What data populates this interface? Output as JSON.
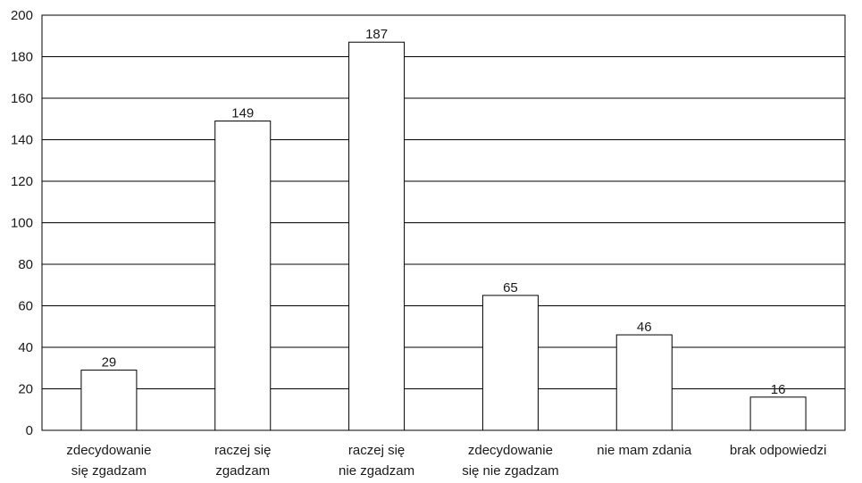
{
  "chart_data": {
    "type": "bar",
    "categories": [
      [
        "zdecydowanie",
        "się zgadzam"
      ],
      [
        "raczej się",
        "zgadzam"
      ],
      [
        "raczej się",
        "nie zgadzam"
      ],
      [
        "zdecydowanie",
        "się nie zgadzam"
      ],
      [
        "nie mam zdania"
      ],
      [
        "brak odpowiedzi"
      ]
    ],
    "values": [
      29,
      149,
      187,
      65,
      46,
      16
    ],
    "data_labels": [
      "29",
      "149",
      "187",
      "65",
      "46",
      "16"
    ],
    "ylim": [
      0,
      200
    ],
    "yticks": [
      "0",
      "20",
      "40",
      "60",
      "80",
      "100",
      "120",
      "140",
      "160",
      "180",
      "200"
    ],
    "grid": true,
    "legend": "none",
    "bar_fill": "#ffffff",
    "bar_stroke": "#000000",
    "grid_color": "#000000"
  }
}
